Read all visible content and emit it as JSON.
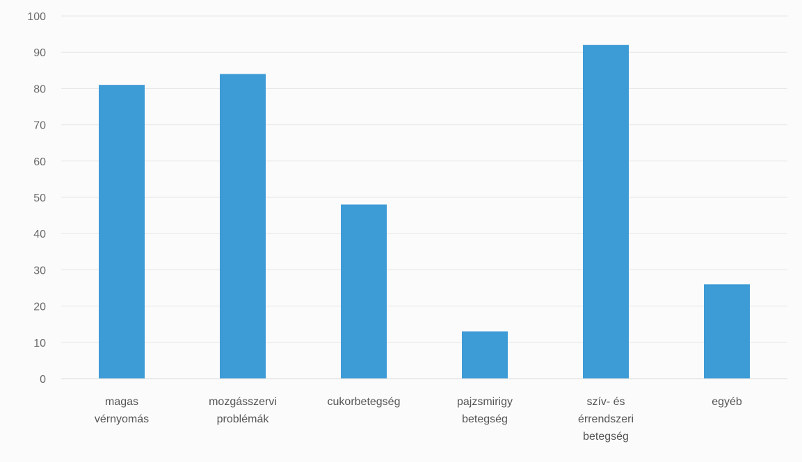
{
  "chart_data": {
    "type": "bar",
    "title": "",
    "xlabel": "",
    "ylabel": "",
    "categories": [
      [
        "magas",
        "vérnyomás"
      ],
      [
        "mozgásszervi",
        "problémák"
      ],
      [
        "cukorbetegség"
      ],
      [
        "pajzsmirigy",
        "betegség"
      ],
      [
        "szív- és",
        "érrendszeri",
        "betegség"
      ],
      [
        "egyéb"
      ]
    ],
    "values": [
      81,
      84,
      48,
      13,
      92,
      26
    ],
    "ylim": [
      0,
      100
    ],
    "yticks": [
      0,
      10,
      20,
      30,
      40,
      50,
      60,
      70,
      80,
      90,
      100
    ],
    "grid": true,
    "legend": "none",
    "bar_color": "#3d9bd6"
  }
}
